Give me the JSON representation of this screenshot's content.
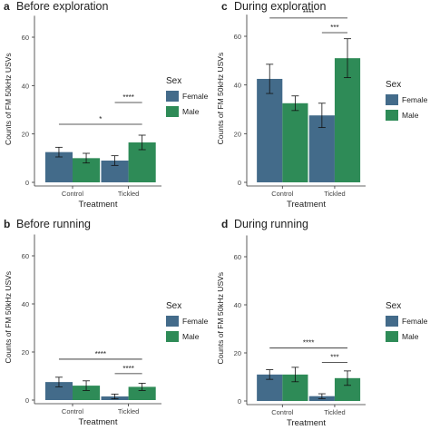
{
  "colors": {
    "female": "#436b8a",
    "male": "#2e8b57"
  },
  "panels": [
    {
      "letter": "a",
      "title": "Before exploration",
      "ylabel": "Counts of FM 50kHz USVs",
      "xlabel": "Treatment",
      "legend_title": "Sex",
      "legend_labels": [
        "Female",
        "Male"
      ]
    },
    {
      "letter": "c",
      "title": "During exploration",
      "ylabel": "Counts of FM 50kHz USVs",
      "xlabel": "Treatment",
      "legend_title": "Sex",
      "legend_labels": [
        "Female",
        "Male"
      ]
    },
    {
      "letter": "b",
      "title": "Before running",
      "ylabel": "Counts of FM 50kHz USVs",
      "xlabel": "Treatment",
      "legend_title": "Sex",
      "legend_labels": [
        "Female",
        "Male"
      ]
    },
    {
      "letter": "d",
      "title": "During running",
      "ylabel": "Counts of FM 50kHz USVs",
      "xlabel": "Treatment",
      "legend_title": "Sex",
      "legend_labels": [
        "Female",
        "Male"
      ]
    }
  ],
  "chart_data": [
    {
      "type": "bar",
      "title": "Before exploration",
      "xlabel": "Treatment",
      "ylabel": "Counts of FM 50kHz USVs",
      "categories": [
        "Control",
        "Tickled"
      ],
      "series": [
        {
          "name": "Female",
          "values": [
            12.5,
            9
          ],
          "errors": [
            2,
            2
          ]
        },
        {
          "name": "Male",
          "values": [
            10,
            16.5
          ],
          "errors": [
            2,
            3
          ]
        }
      ],
      "ylim": [
        0,
        70
      ],
      "yticks": [
        0,
        20,
        40,
        60
      ],
      "legend": "right",
      "grid": false,
      "annotations": [
        {
          "text": "****",
          "from": "Tickled-Female",
          "to": "Tickled-Male",
          "y": 33
        },
        {
          "text": "*",
          "from": "Control-Female",
          "to": "Tickled-Male",
          "y": 24
        }
      ]
    },
    {
      "type": "bar",
      "title": "During exploration",
      "xlabel": "Treatment",
      "ylabel": "Counts of FM 50kHz USVs",
      "categories": [
        "Control",
        "Tickled"
      ],
      "series": [
        {
          "name": "Female",
          "values": [
            42.5,
            27.5
          ],
          "errors": [
            6,
            5
          ]
        },
        {
          "name": "Male",
          "values": [
            32.5,
            51
          ],
          "errors": [
            3,
            8
          ]
        }
      ],
      "ylim": [
        0,
        70
      ],
      "yticks": [
        0,
        20,
        40,
        60
      ],
      "legend": "right",
      "grid": false,
      "annotations": [
        {
          "text": "****",
          "from": "Control-Female",
          "to": "Tickled-Male",
          "y": 67.5
        },
        {
          "text": "***",
          "from": "Tickled-Female",
          "to": "Tickled-Male",
          "y": 61.5
        }
      ]
    },
    {
      "type": "bar",
      "title": "Before running",
      "xlabel": "Treatment",
      "ylabel": "Counts of FM 50kHz USVs",
      "categories": [
        "Control",
        "Tickled"
      ],
      "series": [
        {
          "name": "Female",
          "values": [
            7.5,
            1.5
          ],
          "errors": [
            2,
            1
          ]
        },
        {
          "name": "Male",
          "values": [
            6,
            5.5
          ],
          "errors": [
            2,
            1.5
          ]
        }
      ],
      "ylim": [
        0,
        70
      ],
      "yticks": [
        0,
        20,
        40,
        60
      ],
      "legend": "right",
      "grid": false,
      "annotations": [
        {
          "text": "****",
          "from": "Control-Female",
          "to": "Tickled-Male",
          "y": 17
        },
        {
          "text": "****",
          "from": "Tickled-Female",
          "to": "Tickled-Male",
          "y": 11
        }
      ]
    },
    {
      "type": "bar",
      "title": "During running",
      "xlabel": "Treatment",
      "ylabel": "Counts of FM 50kHz USVs",
      "categories": [
        "Control",
        "Tickled"
      ],
      "series": [
        {
          "name": "Female",
          "values": [
            11,
            2
          ],
          "errors": [
            2,
            1
          ]
        },
        {
          "name": "Male",
          "values": [
            11,
            9.5
          ],
          "errors": [
            3,
            3
          ]
        }
      ],
      "ylim": [
        0,
        70
      ],
      "yticks": [
        0,
        20,
        40,
        60
      ],
      "legend": "right",
      "grid": false,
      "annotations": [
        {
          "text": "****",
          "from": "Control-Female",
          "to": "Tickled-Male",
          "y": 22
        },
        {
          "text": "***",
          "from": "Tickled-Female",
          "to": "Tickled-Male",
          "y": 16
        }
      ]
    }
  ]
}
